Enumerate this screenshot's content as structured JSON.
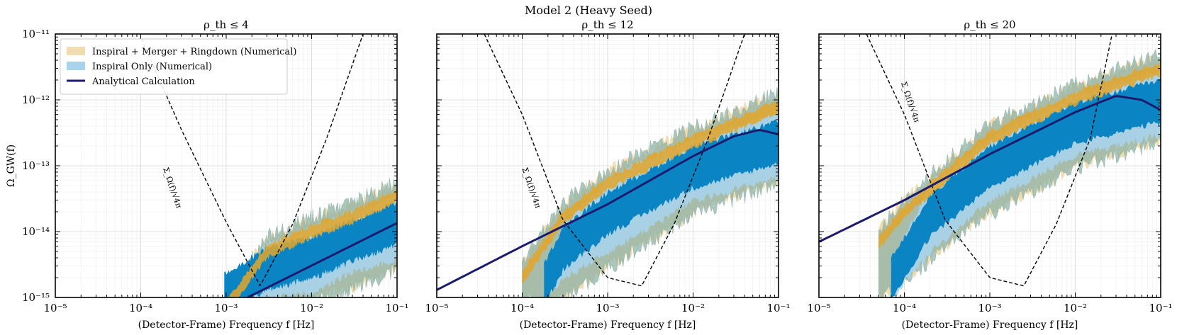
{
  "title": "Model 2 (Heavy Seed)",
  "colors": {
    "full_fill": "#f0dcae",
    "full_upper": "#e2a62c",
    "inspiral_fill": "#a8d3eb",
    "inspiral_core": "#0b84c4",
    "scatter": "#8fb3a8",
    "analytic": "#1b1b6e",
    "sensitivity": "#000000"
  },
  "chart_data": [
    {
      "type": "area",
      "title": "ρ_th ≤ 4",
      "xlabel": "(Detector-Frame) Frequency f [Hz]",
      "ylabel": "Ω_GW(f)",
      "xscale": "log",
      "yscale": "log",
      "xlim": [
        1e-05,
        0.1
      ],
      "ylim": [
        1e-15,
        1e-11
      ],
      "xticks": [
        "10⁻⁵",
        "10⁻⁴",
        "10⁻³",
        "10⁻²",
        "10⁻¹"
      ],
      "yticks": [
        "10⁻¹⁵",
        "10⁻¹⁴",
        "10⁻¹³",
        "10⁻¹²",
        "10⁻¹¹"
      ],
      "grid": true,
      "legend": {
        "placement": "top-left",
        "entries": [
          {
            "label": "Inspiral + Merger + Ringdown (Numerical)",
            "kind": "patch",
            "color": "#f0dcae"
          },
          {
            "label": "Inspiral Only (Numerical)",
            "kind": "patch",
            "color": "#a8d3eb"
          },
          {
            "label": "Analytical Calculation",
            "kind": "line",
            "color": "#1b1b6e"
          }
        ]
      },
      "annotation": "Σ_Ω(f)/√4π",
      "series": [
        {
          "name": "Analytical Calculation",
          "x": [
            0.00178,
            0.1
          ],
          "y": [
            1e-15,
            1.35e-14
          ]
        },
        {
          "name": "Inspiral Only (Numerical) band",
          "x": [
            0.00095,
            0.003,
            0.01,
            0.03,
            0.1
          ],
          "y_low": [
            1e-15,
            1e-15,
            1.2e-15,
            2.5e-15,
            4e-15
          ],
          "y_high": [
            1e-15,
            6e-15,
            1.1e-14,
            1.8e-14,
            3.5e-14
          ]
        },
        {
          "name": "Inspiral + Merger + Ringdown (Numerical) band",
          "x": [
            0.00095,
            0.003,
            0.01,
            0.03,
            0.1
          ],
          "y_low": [
            1e-15,
            1e-15,
            1e-15,
            1.5e-15,
            2.8e-15
          ],
          "y_high": [
            1e-15,
            7.5e-15,
            1.5e-14,
            2.5e-14,
            5.2e-14
          ]
        },
        {
          "name": "sensitivity",
          "x": [
            0.000102,
            0.0003,
            0.001,
            0.0025,
            0.006,
            0.015,
            0.04
          ],
          "y": [
            8.5e-12,
            3.5e-13,
            1.4e-14,
            1.5e-15,
            1.3e-14,
            2.6e-13,
            1e-11
          ]
        }
      ]
    },
    {
      "type": "area",
      "title": "ρ_th ≤ 12",
      "xlabel": "(Detector-Frame) Frequency f [Hz]",
      "xscale": "log",
      "yscale": "log",
      "xlim": [
        1e-05,
        0.1
      ],
      "ylim": [
        1e-15,
        1e-11
      ],
      "xticks": [
        "10⁻⁵",
        "10⁻⁴",
        "10⁻³",
        "10⁻²",
        "10⁻¹"
      ],
      "grid": true,
      "annotation": "Σ_Ω(f)/√4π",
      "series": [
        {
          "name": "Analytical Calculation",
          "x": [
            1e-05,
            0.0001,
            0.001,
            0.01,
            0.03,
            0.06,
            0.1
          ],
          "y": [
            1.3e-15,
            6e-15,
            2.6e-14,
            1.4e-13,
            2.8e-13,
            3.5e-13,
            3e-13
          ]
        },
        {
          "name": "Inspiral Only (Numerical) band",
          "x": [
            0.00018,
            0.0003,
            0.001,
            0.01,
            0.1
          ],
          "y_low": [
            1e-15,
            2e-15,
            5e-15,
            3e-14,
            7e-14
          ],
          "y_high": [
            2e-15,
            1.2e-14,
            6e-14,
            2.5e-13,
            6e-13
          ]
        },
        {
          "name": "Inspiral + Merger + Ringdown (Numerical) band",
          "x": [
            0.0001,
            0.0003,
            0.001,
            0.01,
            0.1
          ],
          "y_low": [
            1e-15,
            1e-15,
            3e-15,
            2e-14,
            6e-14
          ],
          "y_high": [
            3e-15,
            2.5e-14,
            8e-14,
            3.5e-13,
            1.2e-12
          ]
        },
        {
          "name": "sensitivity",
          "x": [
            3.6e-05,
            0.0001,
            0.0003,
            0.001,
            0.0025,
            0.006,
            0.015,
            0.04
          ],
          "y": [
            1e-11,
            6e-13,
            1.5e-14,
            2e-15,
            1.5e-15,
            1.3e-14,
            2.6e-13,
            1e-11
          ]
        }
      ]
    },
    {
      "type": "area",
      "title": "ρ_th ≤ 20",
      "xlabel": "(Detector-Frame) Frequency f [Hz]",
      "xscale": "log",
      "yscale": "log",
      "xlim": [
        1e-05,
        0.1
      ],
      "ylim": [
        1e-15,
        1e-11
      ],
      "xticks": [
        "10⁻⁵",
        "10⁻⁴",
        "10⁻³",
        "10⁻²",
        "10⁻¹"
      ],
      "grid": true,
      "annotation": "Σ_Ω(f)/√4π",
      "series": [
        {
          "name": "Analytical Calculation",
          "x": [
            1e-05,
            0.0001,
            0.001,
            0.01,
            0.03,
            0.06,
            0.1
          ],
          "y": [
            7e-15,
            3e-14,
            1.5e-13,
            6.5e-13,
            1.15e-12,
            1e-12,
            7e-13
          ]
        },
        {
          "name": "Inspiral Only (Numerical) band",
          "x": [
            7e-05,
            0.0002,
            0.001,
            0.01,
            0.1
          ],
          "y_low": [
            1e-15,
            5e-15,
            3e-14,
            1.5e-13,
            3e-13
          ],
          "y_high": [
            3e-15,
            5e-14,
            2.5e-13,
            1.1e-12,
            2.5e-12
          ]
        },
        {
          "name": "Inspiral + Merger + Ringdown (Numerical) band",
          "x": [
            5e-05,
            0.0001,
            0.001,
            0.01,
            0.1
          ],
          "y_low": [
            1e-15,
            2e-15,
            2e-14,
            1e-13,
            2.5e-13
          ],
          "y_high": [
            1e-14,
            3e-14,
            4e-13,
            1.6e-12,
            4.5e-12
          ]
        },
        {
          "name": "sensitivity",
          "x": [
            3.6e-05,
            0.0001,
            0.0003,
            0.001,
            0.0025,
            0.006,
            0.015,
            0.027
          ],
          "y": [
            1e-11,
            6e-13,
            1.5e-14,
            2e-15,
            1.5e-15,
            1.3e-14,
            2.6e-13,
            1e-11
          ]
        }
      ]
    }
  ]
}
